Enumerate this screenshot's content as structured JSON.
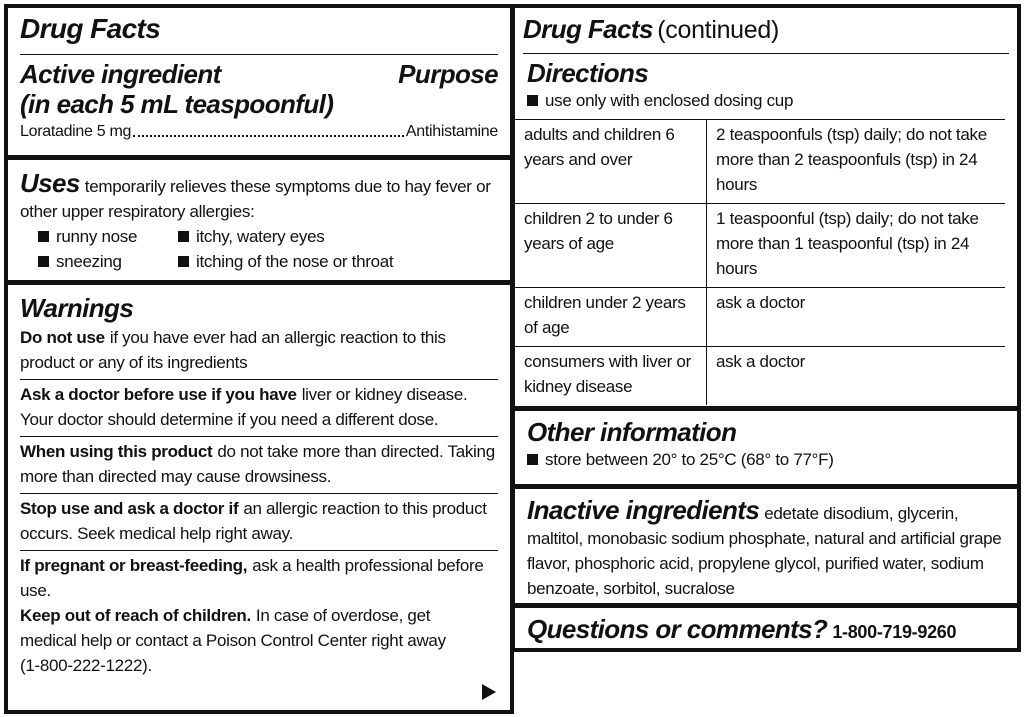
{
  "left_panel": {
    "title": "Drug Facts",
    "active_ingredient": {
      "heading": "Active ingredient",
      "subheading": "(in each 5 mL teaspoonful)",
      "purpose_heading": "Purpose",
      "name": "Loratadine 5 mg",
      "purpose": "Antihistamine"
    },
    "uses": {
      "heading": "Uses",
      "text": "temporarily relieves these symptoms due to hay fever or other upper respiratory allergies:",
      "symptoms": [
        "runny nose",
        "itchy, watery eyes",
        "sneezing",
        "itching of the nose or throat"
      ]
    },
    "warnings": {
      "heading": "Warnings",
      "items": [
        {
          "lead": "Do not use",
          "text": "if you have ever had an allergic reaction to this product or any of its ingredients"
        },
        {
          "lead": "Ask a doctor before use if you have",
          "text": "liver or kidney disease. Your doctor should determine if you need a different dose."
        },
        {
          "lead": "When using this product",
          "text": "do not take more than directed. Taking more than directed may cause drowsiness."
        },
        {
          "lead": "Stop use and ask a doctor if",
          "text": "an allergic reaction to this product occurs. Seek medical help right away."
        },
        {
          "lead": "If pregnant or breast-feeding,",
          "text": "ask a health professional before use."
        },
        {
          "lead": "Keep out of reach of children.",
          "text": "In case of overdose, get medical help or contact a Poison Control Center right away (1-800-222-1222)."
        }
      ]
    }
  },
  "right_panel": {
    "title": "Drug Facts",
    "title_note": "(continued)",
    "directions": {
      "heading": "Directions",
      "note": "use only with enclosed dosing cup",
      "rows": [
        [
          "adults and children 6 years and over",
          "2 teaspoonfuls (tsp) daily; do not take more than 2 teaspoonfuls (tsp) in 24 hours"
        ],
        [
          "children 2 to under 6 years of age",
          "1 teaspoonful (tsp) daily; do not take more than 1 teaspoonful (tsp) in 24 hours"
        ],
        [
          "children under 2 years of age",
          "ask a doctor"
        ],
        [
          "consumers with liver or kidney disease",
          "ask a doctor"
        ]
      ]
    },
    "other_information": {
      "heading": "Other information",
      "items": [
        "store between 20° to 25°C (68° to 77°F)"
      ]
    },
    "inactive_ingredients": {
      "heading": "Inactive ingredients",
      "text": "edetate disodium, glycerin, maltitol, monobasic sodium phosphate, natural and artificial grape flavor, phosphoric acid, propylene glycol, purified water, sodium benzoate, sorbitol, sucralose"
    },
    "questions": {
      "heading": "Questions or comments?",
      "phone": "1-800-719-9260"
    }
  }
}
